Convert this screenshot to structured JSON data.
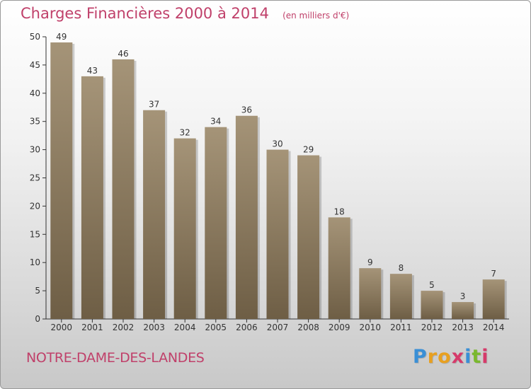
{
  "chart_data": {
    "type": "bar",
    "title": "Charges Financières 2000 à 2014",
    "unit": "(en milliers d'€)",
    "categories": [
      "2000",
      "2001",
      "2002",
      "2003",
      "2004",
      "2005",
      "2006",
      "2007",
      "2008",
      "2009",
      "2010",
      "2011",
      "2012",
      "2013",
      "2014"
    ],
    "values": [
      49,
      43,
      46,
      37,
      32,
      34,
      36,
      30,
      29,
      18,
      9,
      8,
      5,
      3,
      7
    ],
    "ylim": [
      0,
      50
    ],
    "yticks": [
      0,
      5,
      10,
      15,
      20,
      25,
      30,
      35,
      40,
      45,
      50
    ],
    "xlabel": "",
    "ylabel": "",
    "grid": false,
    "bar_color_top": "#a59478",
    "bar_color_bottom": "#6e5e45"
  },
  "location": "NOTRE-DAME-DES-LANDES",
  "logo": {
    "letters": [
      "P",
      "r",
      "o",
      "x",
      "i",
      "t",
      "i"
    ],
    "colors": [
      "#3a8fd6",
      "#e8a020",
      "#e8a020",
      "#d63a6a",
      "#3a8fd6",
      "#7ab82e",
      "#d63a6a"
    ]
  },
  "colors": {
    "title": "#c0406a",
    "axis": "#333333"
  }
}
